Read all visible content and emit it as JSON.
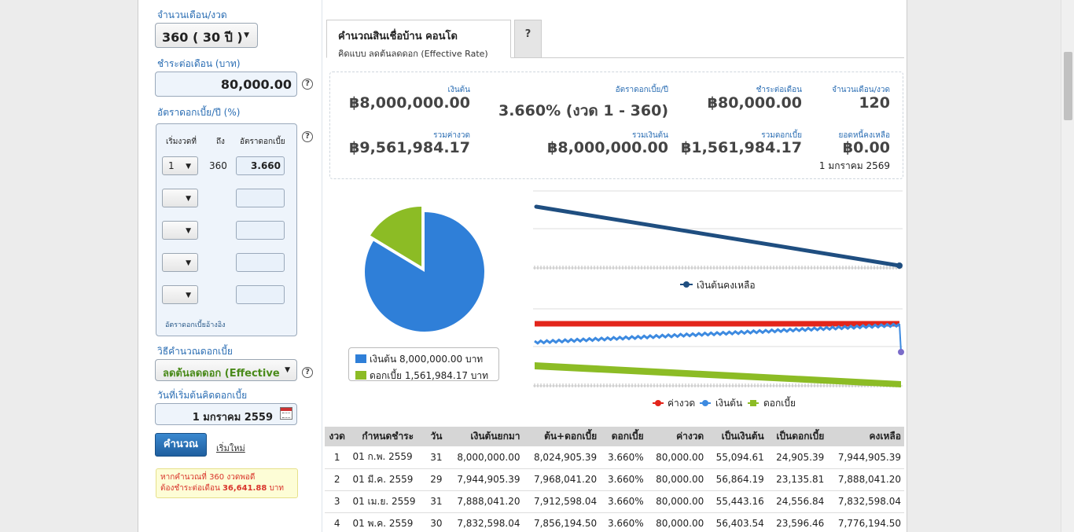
{
  "left": {
    "term_label": "จำนวนเดือน/งวด",
    "term_value": "360 ( 30 ปี )",
    "monthly_label": "ชำระต่อเดือน (บาท)",
    "monthly_value": "80,000.00",
    "rate_label": "อัตราดอกเบี้ย/ปี (%)",
    "rate_headers": [
      "เริ่มงวดที่",
      "ถึง",
      "อัตราดอกเบี้ย"
    ],
    "rate_row1": {
      "start": "1",
      "end": "360",
      "rate": "3.660"
    },
    "ref_rate_link": "อัตราดอกเบี้ยอ้างอิง",
    "method_label": "วิธีคำนวณดอกเบี้ย",
    "method_value": "ลดต้นลดดอก (Effective",
    "start_label": "วันที่เริ่มต้นคิดดอกเบี้ย",
    "start_value": "1 มกราคม 2559",
    "calc_button": "คำนวณ",
    "reset_link": "เริ่มใหม่",
    "note_line1": "หากคำนวณที่ 360 งวดพอดี",
    "note_line2_prefix": "ต้องชำระต่อเดือน ",
    "note_line2_value": "36,641.88",
    "note_line2_suffix": " บาท",
    "help_glyph": "?"
  },
  "tabs": {
    "active_title": "คำนวณสินเชื่อบ้าน คอนโด",
    "active_sub": "คิดแบบ ลดต้นลดดอก (Effective Rate)",
    "help_tab": "?"
  },
  "summary": {
    "principal_label": "เงินต้น",
    "principal": "฿8,000,000.00",
    "rate_label": "อัตราดอกเบี้ย/ปี",
    "rate": "3.660% (งวด 1 - 360)",
    "pay_label": "ชำระต่อเดือน",
    "pay": "฿80,000.00",
    "months_label": "จำนวนเดือน/งวด",
    "months": "120",
    "total_label": "รวมค่างวด",
    "total": "฿9,561,984.17",
    "total_principal_label": "รวมเงินต้น",
    "total_principal": "฿8,000,000.00",
    "total_interest_label": "รวมดอกเบี้ย",
    "total_interest": "฿1,561,984.17",
    "balance_label": "ยอดหนี้คงเหลือ",
    "balance": "฿0.00",
    "end_date": "1 มกราคม 2569"
  },
  "pie": {
    "legend_principal": "เงินต้น 8,000,000.00 บาท",
    "legend_interest": "ดอกเบี้ย 1,561,984.17 บาท",
    "principal_value": 8000000.0,
    "interest_value": 1561984.17,
    "principal_color": "#2f7fd8",
    "interest_color": "#8cbc25"
  },
  "line_chart_1": {
    "legend": "เงินต้นคงเหลือ",
    "color": "#1f4e80",
    "start": 8000000,
    "end": 0
  },
  "line_chart_2": {
    "legend_payment": "ค่างวด",
    "legend_principal": "เงินต้น",
    "legend_interest": "ดอกเบี้ย",
    "payment_color": "#e3251b",
    "principal_color": "#3d8ae0",
    "interest_color": "#8cbc25"
  },
  "table": {
    "headers": [
      "งวด",
      "กำหนดชำระ",
      "วัน",
      "เงินต้นยกมา",
      "ต้น+ดอกเบี้ย",
      "ดอกเบี้ย",
      "ค่างวด",
      "เป็นเงินต้น",
      "เป็นดอกเบี้ย",
      "คงเหลือ"
    ],
    "rows": [
      [
        "1",
        "01 ก.พ. 2559",
        "31",
        "8,000,000.00",
        "8,024,905.39",
        "3.660%",
        "80,000.00",
        "55,094.61",
        "24,905.39",
        "7,944,905.39"
      ],
      [
        "2",
        "01 มี.ค. 2559",
        "29",
        "7,944,905.39",
        "7,968,041.20",
        "3.660%",
        "80,000.00",
        "56,864.19",
        "23,135.81",
        "7,888,041.20"
      ],
      [
        "3",
        "01 เม.ย. 2559",
        "31",
        "7,888,041.20",
        "7,912,598.04",
        "3.660%",
        "80,000.00",
        "55,443.16",
        "24,556.84",
        "7,832,598.04"
      ],
      [
        "4",
        "01 พ.ค. 2559",
        "30",
        "7,832,598.04",
        "7,856,194.50",
        "3.660%",
        "80,000.00",
        "56,403.54",
        "23,596.46",
        "7,776,194.50"
      ]
    ]
  }
}
